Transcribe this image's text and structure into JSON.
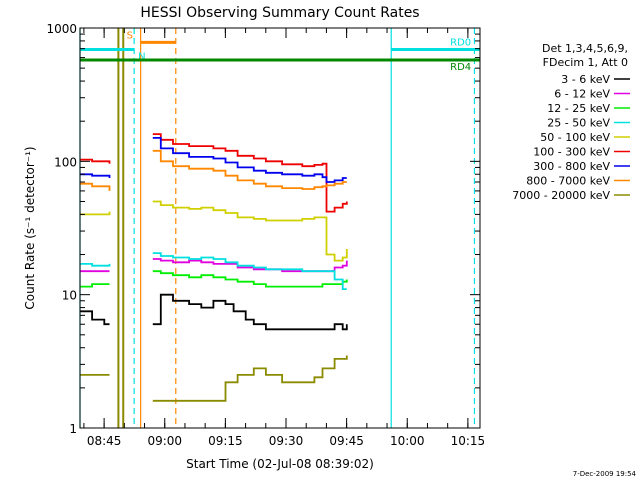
{
  "chart_data": {
    "type": "line",
    "title": "HESSI Observing Summary Count Rates",
    "xlabel": "Start Time (02-Jul-08 08:39:02)",
    "ylabel": "Count Rate (s⁻¹ detector⁻¹)",
    "xlim": [
      "08:39:02",
      "10:18:00"
    ],
    "ylim": [
      1,
      1000
    ],
    "yscale": "log",
    "x_ticks": [
      "08:45",
      "09:00",
      "09:15",
      "09:30",
      "09:45",
      "10:00",
      "10:15"
    ],
    "y_ticks": [
      "1",
      "10",
      "100",
      "1000"
    ],
    "legend_header": [
      "Det 1,3,4,5,6,9,",
      "FDecim 1, Att 0"
    ],
    "legend_position": "right",
    "footer": "7-Dec-2009 19:54",
    "series": [
      {
        "name": "3 - 6 keV",
        "color": "#000000",
        "points": [
          [
            0,
            7.5
          ],
          [
            3,
            6.5
          ],
          [
            6,
            6
          ],
          [
            7.3,
            6
          ],
          [
            18,
            6
          ],
          [
            20,
            10
          ],
          [
            23,
            9
          ],
          [
            27,
            8.5
          ],
          [
            30,
            8
          ],
          [
            33,
            9
          ],
          [
            36,
            8.5
          ],
          [
            38,
            7.5
          ],
          [
            41,
            6.5
          ],
          [
            43,
            6
          ],
          [
            46,
            5.5
          ],
          [
            50,
            5.5
          ],
          [
            55,
            5.5
          ],
          [
            60,
            5.5
          ],
          [
            63,
            6
          ],
          [
            65,
            5.5
          ],
          [
            66,
            6
          ]
        ]
      },
      {
        "name": "6 - 12 keV",
        "color": "#e000e0",
        "points": [
          [
            0,
            15
          ],
          [
            3,
            15
          ],
          [
            7.3,
            15
          ],
          [
            18,
            18.5
          ],
          [
            20,
            18
          ],
          [
            23,
            17.5
          ],
          [
            27,
            18
          ],
          [
            30,
            17.5
          ],
          [
            33,
            17
          ],
          [
            36,
            17
          ],
          [
            39,
            16
          ],
          [
            43,
            15.5
          ],
          [
            46,
            15.5
          ],
          [
            50,
            15
          ],
          [
            55,
            15
          ],
          [
            60,
            15
          ],
          [
            63,
            16
          ],
          [
            65,
            16.5
          ],
          [
            66,
            18
          ]
        ]
      },
      {
        "name": "12 - 25 keV",
        "color": "#00ee00",
        "points": [
          [
            0,
            11.5
          ],
          [
            3,
            12
          ],
          [
            7.3,
            12
          ],
          [
            18,
            15
          ],
          [
            20,
            14.5
          ],
          [
            23,
            14
          ],
          [
            27,
            13.5
          ],
          [
            30,
            14
          ],
          [
            33,
            13.5
          ],
          [
            36,
            13
          ],
          [
            39,
            12.5
          ],
          [
            43,
            12
          ],
          [
            46,
            11.5
          ],
          [
            50,
            11.5
          ],
          [
            55,
            11.5
          ],
          [
            60,
            12
          ],
          [
            63,
            12
          ],
          [
            65,
            12.5
          ],
          [
            66,
            13
          ]
        ]
      },
      {
        "name": "25 - 50 keV",
        "color": "#00e0e0",
        "points": [
          [
            0,
            17
          ],
          [
            3,
            16.5
          ],
          [
            7.3,
            17
          ],
          [
            18,
            20.5
          ],
          [
            20,
            19.5
          ],
          [
            23,
            19
          ],
          [
            27,
            18.5
          ],
          [
            30,
            19
          ],
          [
            33,
            18.5
          ],
          [
            36,
            17.5
          ],
          [
            39,
            16.5
          ],
          [
            43,
            16
          ],
          [
            46,
            15.5
          ],
          [
            50,
            15.5
          ],
          [
            55,
            15
          ],
          [
            60,
            15
          ],
          [
            63,
            13
          ],
          [
            65,
            11
          ],
          [
            66,
            11
          ]
        ]
      },
      {
        "name": "50 - 100 keV",
        "color": "#d0d000",
        "points": [
          [
            0,
            40
          ],
          [
            3,
            40
          ],
          [
            7.3,
            42
          ],
          [
            18,
            50
          ],
          [
            20,
            47
          ],
          [
            23,
            45
          ],
          [
            27,
            44
          ],
          [
            30,
            45
          ],
          [
            33,
            43
          ],
          [
            36,
            41
          ],
          [
            39,
            38
          ],
          [
            43,
            37
          ],
          [
            46,
            36
          ],
          [
            50,
            36
          ],
          [
            55,
            37
          ],
          [
            58,
            38
          ],
          [
            60,
            38
          ],
          [
            61,
            20
          ],
          [
            63,
            18
          ],
          [
            65,
            19
          ],
          [
            66,
            22
          ]
        ]
      },
      {
        "name": "100 - 300 keV",
        "color": "#ee0000",
        "points": [
          [
            0,
            103
          ],
          [
            3,
            100
          ],
          [
            7.3,
            96
          ],
          [
            18,
            160
          ],
          [
            20,
            145
          ],
          [
            23,
            135
          ],
          [
            27,
            130
          ],
          [
            30,
            130
          ],
          [
            33,
            125
          ],
          [
            36,
            120
          ],
          [
            39,
            110
          ],
          [
            43,
            105
          ],
          [
            46,
            100
          ],
          [
            50,
            95
          ],
          [
            55,
            92
          ],
          [
            58,
            94
          ],
          [
            60,
            96
          ],
          [
            61,
            42
          ],
          [
            63,
            45
          ],
          [
            65,
            48
          ],
          [
            66,
            50
          ]
        ]
      },
      {
        "name": "300 - 800 keV",
        "color": "#0000ee",
        "points": [
          [
            0,
            80
          ],
          [
            3,
            78
          ],
          [
            7.3,
            75
          ],
          [
            18,
            150
          ],
          [
            20,
            125
          ],
          [
            23,
            115
          ],
          [
            27,
            108
          ],
          [
            30,
            108
          ],
          [
            33,
            105
          ],
          [
            36,
            98
          ],
          [
            39,
            90
          ],
          [
            43,
            85
          ],
          [
            46,
            82
          ],
          [
            50,
            80
          ],
          [
            55,
            78
          ],
          [
            58,
            80
          ],
          [
            60,
            76
          ],
          [
            61,
            70
          ],
          [
            63,
            72
          ],
          [
            65,
            75
          ],
          [
            66,
            75
          ]
        ]
      },
      {
        "name": "800 - 7000 keV",
        "color": "#ff8800",
        "points": [
          [
            0,
            68
          ],
          [
            3,
            65
          ],
          [
            7.3,
            60
          ],
          [
            18,
            120
          ],
          [
            20,
            100
          ],
          [
            23,
            92
          ],
          [
            27,
            88
          ],
          [
            30,
            88
          ],
          [
            33,
            85
          ],
          [
            36,
            78
          ],
          [
            39,
            72
          ],
          [
            43,
            68
          ],
          [
            46,
            65
          ],
          [
            50,
            63
          ],
          [
            55,
            62
          ],
          [
            58,
            64
          ],
          [
            60,
            65
          ],
          [
            61,
            66
          ],
          [
            63,
            68
          ],
          [
            65,
            70
          ],
          [
            66,
            70
          ]
        ]
      },
      {
        "name": "7000 - 20000 keV",
        "color": "#8b8b00",
        "points": [
          [
            0,
            2.5
          ],
          [
            3,
            2.5
          ],
          [
            7.3,
            2.5
          ],
          [
            18,
            1.6
          ],
          [
            27,
            1.6
          ],
          [
            33,
            1.6
          ],
          [
            36,
            2.2
          ],
          [
            39,
            2.5
          ],
          [
            43,
            2.8
          ],
          [
            46,
            2.5
          ],
          [
            50,
            2.2
          ],
          [
            55,
            2.2
          ],
          [
            58,
            2.4
          ],
          [
            60,
            2.8
          ],
          [
            63,
            3.3
          ],
          [
            66,
            3.5
          ]
        ]
      }
    ],
    "state_bars": [
      {
        "label": "S",
        "color": "#ff8800",
        "x": [
          15,
          23.7
        ],
        "y": 780
      },
      {
        "label": "N",
        "color": "#00e0e0",
        "x": [
          0,
          13.4
        ],
        "y": 690
      },
      {
        "label": "RD0",
        "color": "#00e0e0",
        "x": [
          77,
          99
        ],
        "y": 690
      },
      {
        "label": "RD4",
        "color": "#008800",
        "x": [
          0,
          99
        ],
        "y": 575
      }
    ],
    "vertical_markers": [
      {
        "color": "#00e0e0",
        "style": "solid",
        "x": 0
      },
      {
        "color": "#00e0e0",
        "style": "dashed",
        "x": 13.4
      },
      {
        "color": "#00e0e0",
        "style": "solid",
        "x": 77
      },
      {
        "color": "#00e0e0",
        "style": "dashed",
        "x": 97.6
      },
      {
        "color": "#ff8800",
        "style": "solid",
        "x": 15
      },
      {
        "color": "#ff8800",
        "style": "dashed",
        "x": 23.7
      },
      {
        "color": "#8b8b00",
        "style": "solid",
        "x": 9.5
      },
      {
        "color": "#8b8b00",
        "style": "solid",
        "x": 10.7
      }
    ]
  }
}
